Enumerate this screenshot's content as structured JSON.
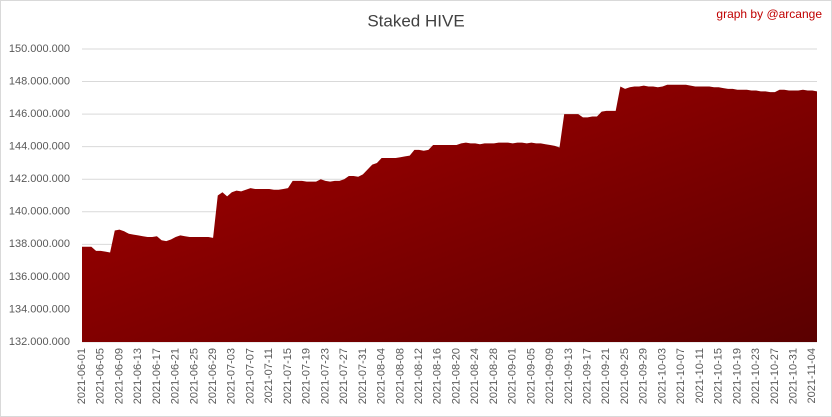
{
  "chart_data": {
    "type": "area",
    "title": "Staked HIVE",
    "annotation": "graph by @arcange",
    "color": "#a80000",
    "color_dark": "#5a0000",
    "grid": true,
    "ylim": [
      132000000,
      150000000
    ],
    "yticks": [
      {
        "value": 132000000,
        "label": "132.000.000"
      },
      {
        "value": 134000000,
        "label": "134.000.000"
      },
      {
        "value": 136000000,
        "label": "136.000.000"
      },
      {
        "value": 138000000,
        "label": "138.000.000"
      },
      {
        "value": 140000000,
        "label": "140.000.000"
      },
      {
        "value": 142000000,
        "label": "142.000.000"
      },
      {
        "value": 144000000,
        "label": "144.000.000"
      },
      {
        "value": 146000000,
        "label": "146.000.000"
      },
      {
        "value": 148000000,
        "label": "148.000.000"
      },
      {
        "value": 150000000,
        "label": "150.000.000"
      }
    ],
    "categories": [
      "2021-06-01",
      null,
      null,
      null,
      "2021-06-05",
      null,
      null,
      null,
      "2021-06-09",
      null,
      null,
      null,
      "2021-06-13",
      null,
      null,
      null,
      "2021-06-17",
      null,
      null,
      null,
      "2021-06-21",
      null,
      null,
      null,
      "2021-06-25",
      null,
      null,
      null,
      "2021-06-29",
      null,
      null,
      null,
      "2021-07-03",
      null,
      null,
      null,
      "2021-07-07",
      null,
      null,
      null,
      "2021-07-11",
      null,
      null,
      null,
      "2021-07-15",
      null,
      null,
      null,
      "2021-07-19",
      null,
      null,
      null,
      "2021-07-23",
      null,
      null,
      null,
      "2021-07-27",
      null,
      null,
      null,
      "2021-07-31",
      null,
      null,
      null,
      "2021-08-04",
      null,
      null,
      null,
      "2021-08-08",
      null,
      null,
      null,
      "2021-08-12",
      null,
      null,
      null,
      "2021-08-16",
      null,
      null,
      null,
      "2021-08-20",
      null,
      null,
      null,
      "2021-08-24",
      null,
      null,
      null,
      "2021-08-28",
      null,
      null,
      null,
      "2021-09-01",
      null,
      null,
      null,
      "2021-09-05",
      null,
      null,
      null,
      "2021-09-09",
      null,
      null,
      null,
      "2021-09-13",
      null,
      null,
      null,
      "2021-09-17",
      null,
      null,
      null,
      "2021-09-21",
      null,
      null,
      null,
      "2021-09-25",
      null,
      null,
      null,
      "2021-09-29",
      null,
      null,
      null,
      "2021-10-03",
      null,
      null,
      null,
      "2021-10-07",
      null,
      null,
      null,
      "2021-10-11",
      null,
      null,
      null,
      "2021-10-15",
      null,
      null,
      null,
      "2021-10-19",
      null,
      null,
      null,
      "2021-10-23",
      null,
      null,
      null,
      "2021-10-27",
      null,
      null,
      null,
      "2021-10-31",
      null,
      null,
      null,
      "2021-11-04",
      null
    ],
    "values": [
      137850000,
      137850000,
      137850000,
      137600000,
      137600000,
      137550000,
      137500000,
      138850000,
      138900000,
      138800000,
      138650000,
      138600000,
      138550000,
      138500000,
      138450000,
      138450000,
      138500000,
      138250000,
      138200000,
      138300000,
      138450000,
      138550000,
      138500000,
      138450000,
      138450000,
      138450000,
      138450000,
      138450000,
      138400000,
      141000000,
      141200000,
      140950000,
      141200000,
      141300000,
      141250000,
      141350000,
      141450000,
      141400000,
      141400000,
      141400000,
      141400000,
      141350000,
      141350000,
      141400000,
      141450000,
      141900000,
      141900000,
      141900000,
      141850000,
      141850000,
      141850000,
      142000000,
      141900000,
      141850000,
      141900000,
      141900000,
      142000000,
      142200000,
      142200000,
      142150000,
      142300000,
      142600000,
      142900000,
      143000000,
      143300000,
      143300000,
      143300000,
      143300000,
      143350000,
      143400000,
      143450000,
      143800000,
      143800000,
      143750000,
      143800000,
      144100000,
      144100000,
      144100000,
      144100000,
      144100000,
      144100000,
      144200000,
      144250000,
      144200000,
      144200000,
      144150000,
      144200000,
      144200000,
      144200000,
      144250000,
      144250000,
      144250000,
      144200000,
      144250000,
      144250000,
      144200000,
      144250000,
      144200000,
      144200000,
      144150000,
      144100000,
      144050000,
      143950000,
      146000000,
      146000000,
      146000000,
      146000000,
      145800000,
      145800000,
      145850000,
      145850000,
      146150000,
      146200000,
      146200000,
      146200000,
      147700000,
      147550000,
      147650000,
      147700000,
      147700000,
      147750000,
      147700000,
      147700000,
      147650000,
      147700000,
      147800000,
      147800000,
      147800000,
      147800000,
      147800000,
      147750000,
      147700000,
      147700000,
      147700000,
      147700000,
      147650000,
      147650000,
      147600000,
      147550000,
      147550000,
      147500000,
      147500000,
      147500000,
      147450000,
      147450000,
      147400000,
      147400000,
      147350000,
      147350000,
      147500000,
      147500000,
      147450000,
      147450000,
      147450000,
      147500000,
      147450000,
      147450000,
      147400000
    ]
  }
}
